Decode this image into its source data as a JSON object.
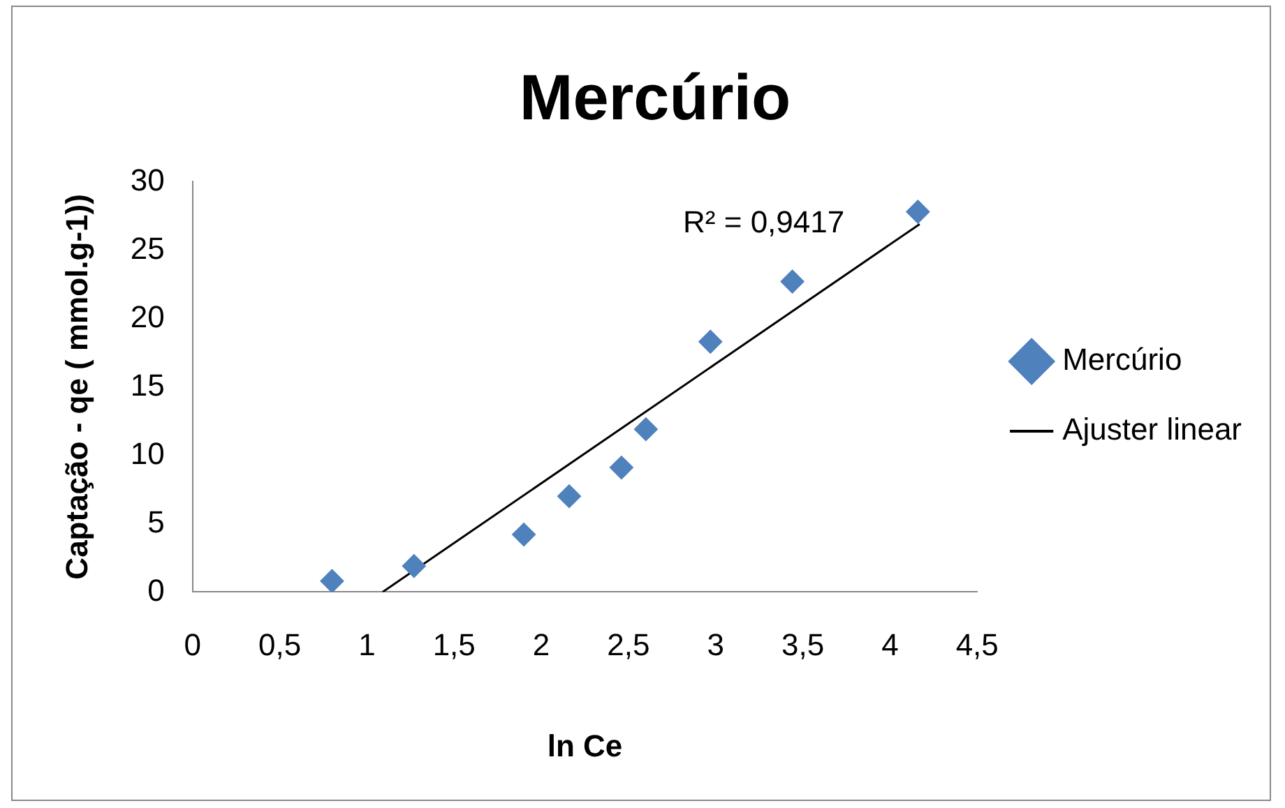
{
  "chart_data": {
    "type": "scatter",
    "title": "Mercúrio",
    "xlabel": "ln Ce",
    "ylabel": "Captação - qe ( mmol.g-1))",
    "series": [
      {
        "name": "Mercúrio",
        "color": "#4f81bd",
        "x": [
          0.8,
          1.27,
          1.9,
          2.16,
          2.46,
          2.6,
          2.97,
          3.44,
          4.16
        ],
        "values": [
          0.8,
          1.9,
          4.2,
          7.0,
          9.1,
          11.9,
          18.3,
          22.7,
          27.8
        ],
        "marker": "diamond"
      },
      {
        "name": "Ajuster linear",
        "type": "line",
        "color": "#000000",
        "x": [
          1.09,
          4.17
        ],
        "values": [
          0,
          26.9
        ],
        "marker": "none"
      }
    ],
    "xlim": [
      0,
      4.5
    ],
    "xticks": [
      0,
      {
        "value": 0.5,
        "label": "0,5"
      },
      1,
      {
        "value": 1.5,
        "label": "1,5"
      },
      2,
      {
        "value": 2.5,
        "label": "2,5"
      },
      3,
      {
        "value": 3.5,
        "label": "3,5"
      },
      4,
      {
        "value": 4.5,
        "label": "4,5"
      }
    ],
    "ylim": [
      0,
      30
    ],
    "yticks": [
      0,
      5,
      10,
      15,
      20,
      25,
      30
    ],
    "annotations": [
      "R² = 0,9417"
    ],
    "grid": false,
    "legend": "right"
  }
}
